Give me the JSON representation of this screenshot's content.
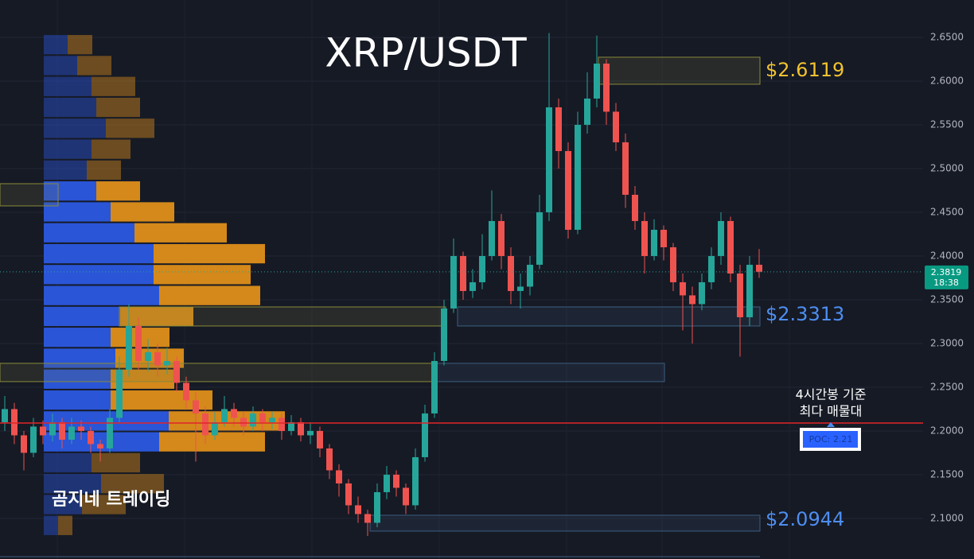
{
  "chart_data": {
    "type": "candlestick",
    "title": "XRP/USDT",
    "ylim": [
      2.0536,
      2.6927
    ],
    "yticks": [
      {
        "value": 2.1,
        "label": "2.1000"
      },
      {
        "value": 2.15,
        "label": "2.1500"
      },
      {
        "value": 2.2,
        "label": "2.2000"
      },
      {
        "value": 2.25,
        "label": "2.2500"
      },
      {
        "value": 2.3,
        "label": "2.3000"
      },
      {
        "value": 2.35,
        "label": "2.3500"
      },
      {
        "value": 2.4,
        "label": "2.4000"
      },
      {
        "value": 2.45,
        "label": "2.4500"
      },
      {
        "value": 2.5,
        "label": "2.5000"
      },
      {
        "value": 2.55,
        "label": "2.5500"
      },
      {
        "value": 2.6,
        "label": "2.6000"
      },
      {
        "value": 2.65,
        "label": "2.6500"
      }
    ],
    "grid": true,
    "up_color": "#26a69a",
    "down_color": "#ef5350",
    "open": [
      2.21,
      2.225,
      2.195,
      2.175,
      2.205,
      2.195,
      2.21,
      2.19,
      2.205,
      2.2,
      2.185,
      2.18,
      2.215,
      2.27,
      2.32,
      2.28,
      2.29,
      2.275,
      2.28,
      2.255,
      2.235,
      2.22,
      2.195,
      2.21,
      2.225,
      2.215,
      2.205,
      2.22,
      2.21,
      2.215,
      2.2,
      2.21,
      2.195,
      2.2,
      2.18,
      2.155,
      2.14,
      2.115,
      2.105,
      2.095,
      2.13,
      2.15,
      2.135,
      2.115,
      2.17,
      2.22,
      2.28,
      2.34,
      2.4,
      2.36,
      2.37,
      2.4,
      2.44,
      2.4,
      2.36,
      2.365,
      2.39,
      2.45,
      2.57,
      2.52,
      2.43,
      2.55,
      2.58,
      2.62,
      2.565,
      2.53,
      2.47,
      2.44,
      2.4,
      2.43,
      2.41,
      2.37,
      2.355,
      2.345,
      2.37,
      2.4,
      2.44,
      2.38,
      2.33,
      2.39
    ],
    "high": [
      2.24,
      2.232,
      2.2,
      2.215,
      2.212,
      2.22,
      2.215,
      2.215,
      2.212,
      2.205,
      2.19,
      2.225,
      2.285,
      2.345,
      2.33,
      2.305,
      2.3,
      2.295,
      2.285,
      2.262,
      2.245,
      2.228,
      2.222,
      2.24,
      2.232,
      2.222,
      2.228,
      2.225,
      2.222,
      2.22,
      2.218,
      2.215,
      2.21,
      2.205,
      2.185,
      2.162,
      2.145,
      2.125,
      2.11,
      2.14,
      2.16,
      2.155,
      2.14,
      2.18,
      2.23,
      2.29,
      2.35,
      2.42,
      2.405,
      2.385,
      2.425,
      2.475,
      2.448,
      2.41,
      2.38,
      2.4,
      2.47,
      2.655,
      2.58,
      2.53,
      2.565,
      2.61,
      2.652,
      2.625,
      2.575,
      2.54,
      2.48,
      2.45,
      2.442,
      2.435,
      2.415,
      2.38,
      2.365,
      2.38,
      2.41,
      2.45,
      2.445,
      2.39,
      2.4,
      2.408
    ],
    "low": [
      2.2,
      2.185,
      2.155,
      2.17,
      2.185,
      2.188,
      2.18,
      2.185,
      2.19,
      2.175,
      2.165,
      2.175,
      2.21,
      2.262,
      2.27,
      2.268,
      2.262,
      2.265,
      2.245,
      2.225,
      2.165,
      2.185,
      2.19,
      2.205,
      2.205,
      2.195,
      2.2,
      2.2,
      2.202,
      2.19,
      2.195,
      2.188,
      2.185,
      2.17,
      2.145,
      2.125,
      2.105,
      2.095,
      2.08,
      2.09,
      2.122,
      2.125,
      2.105,
      2.11,
      2.165,
      2.215,
      2.275,
      2.335,
      2.35,
      2.352,
      2.362,
      2.395,
      2.385,
      2.345,
      2.34,
      2.355,
      2.385,
      2.44,
      2.5,
      2.42,
      2.425,
      2.54,
      2.57,
      2.55,
      2.52,
      2.455,
      2.43,
      2.38,
      2.395,
      2.395,
      2.36,
      2.315,
      2.3,
      2.338,
      2.362,
      2.39,
      2.37,
      2.285,
      2.32,
      2.375
    ],
    "close": [
      2.225,
      2.195,
      2.175,
      2.205,
      2.195,
      2.21,
      2.19,
      2.205,
      2.2,
      2.185,
      2.18,
      2.215,
      2.27,
      2.32,
      2.28,
      2.29,
      2.275,
      2.28,
      2.255,
      2.235,
      2.22,
      2.195,
      2.21,
      2.225,
      2.215,
      2.205,
      2.22,
      2.21,
      2.215,
      2.2,
      2.21,
      2.195,
      2.2,
      2.18,
      2.155,
      2.14,
      2.115,
      2.105,
      2.095,
      2.13,
      2.15,
      2.135,
      2.115,
      2.17,
      2.22,
      2.28,
      2.34,
      2.4,
      2.36,
      2.37,
      2.4,
      2.44,
      2.4,
      2.36,
      2.365,
      2.39,
      2.45,
      2.57,
      2.52,
      2.43,
      2.55,
      2.58,
      2.62,
      2.565,
      2.53,
      2.47,
      2.44,
      2.4,
      2.43,
      2.41,
      2.37,
      2.355,
      2.345,
      2.37,
      2.4,
      2.44,
      2.38,
      2.33,
      2.39,
      2.382
    ],
    "profile": {
      "bins": [
        2.6536,
        2.6297,
        2.6058,
        2.5819,
        2.558,
        2.5341,
        2.5102,
        2.4863,
        2.4624,
        2.4385,
        2.4146,
        2.3907,
        2.3668,
        2.3429,
        2.319,
        2.2951,
        2.2712,
        2.2473,
        2.2234,
        2.1995,
        2.1756,
        2.1517,
        2.1278,
        2.1039,
        2.08
      ],
      "buy": [
        30,
        42,
        60,
        66,
        78,
        60,
        54,
        66,
        84,
        114,
        138,
        138,
        145,
        96,
        84,
        90,
        84,
        84,
        157,
        145,
        60,
        72,
        48,
        18
      ],
      "sell": [
        31,
        43,
        55,
        55,
        61,
        49,
        43,
        55,
        80,
        116,
        140,
        122,
        127,
        92,
        74,
        86,
        80,
        128,
        146,
        133,
        61,
        79,
        55,
        18
      ],
      "buy_color": "#2a55d6",
      "sell_color": "#d4891a"
    },
    "zones": [
      {
        "top": 2.6273,
        "bottom": 2.5964
      },
      {
        "top": 2.3418,
        "bottom": 2.32
      },
      {
        "top": 2.4827,
        "bottom": 2.4573
      },
      {
        "top": 2.2773,
        "bottom": 2.2564
      },
      {
        "top": 2.1036,
        "bottom": 2.0855
      }
    ],
    "level_labels": [
      {
        "text": "$2.6119",
        "color": "#f2c230"
      },
      {
        "text": "$2.3313",
        "color": "#4d8ef0"
      },
      {
        "text": "$2.0944",
        "color": "#4d8ef0"
      }
    ],
    "poc": {
      "value": 2.2091,
      "label": "POC: 2.21",
      "color": "#e0242a"
    },
    "poc_note": [
      "4시간봉 기준",
      "최다 매물대"
    ],
    "last_price": 2.3819,
    "last_time": "18:38",
    "watermark": "곰지네 트레이딩"
  }
}
